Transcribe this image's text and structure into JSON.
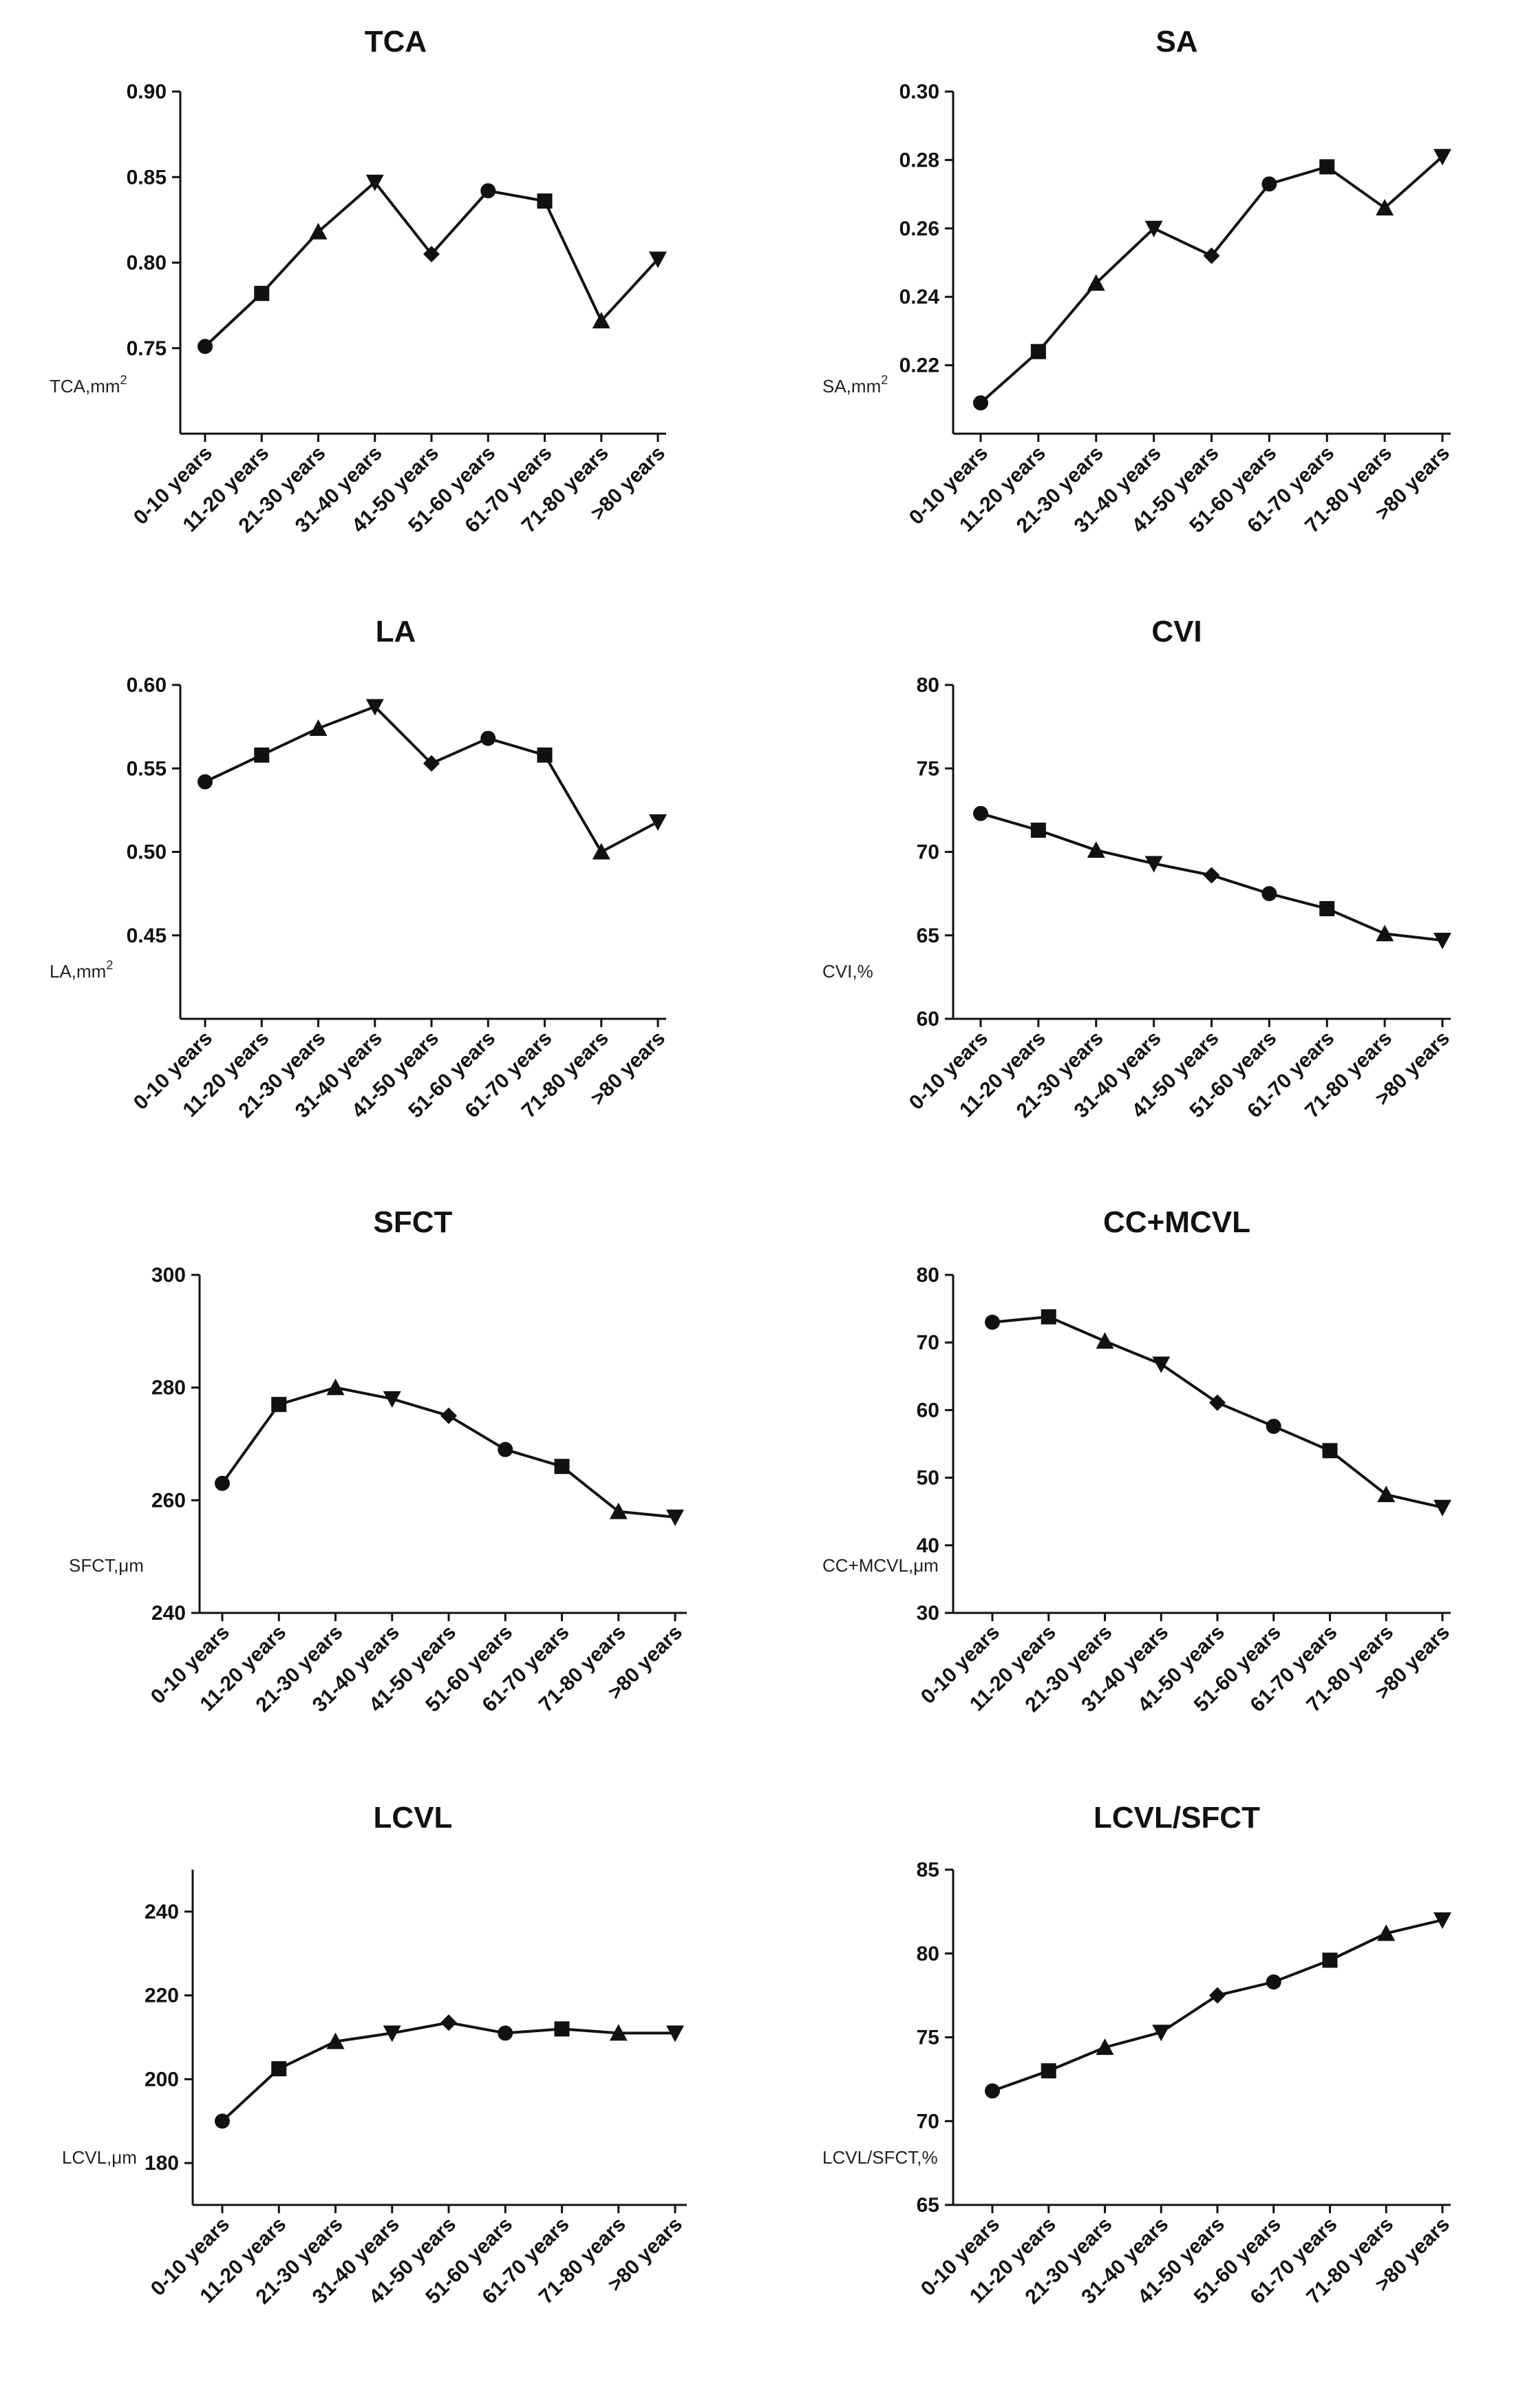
{
  "chart_data": [
    {
      "type": "line",
      "title": "TCA",
      "ylabel": "TCA,mm",
      "ylabel_sup": "2",
      "categories": [
        "0-10 years",
        "11-20 years",
        "21-30 years",
        "31-40 years",
        "41-50 years",
        "51-60 years",
        "61-70 years",
        "71-80 years",
        ">80 years"
      ],
      "values": [
        0.751,
        0.782,
        0.818,
        0.847,
        0.805,
        0.842,
        0.836,
        0.766,
        0.802
      ],
      "ylim": [
        0.7,
        0.9
      ],
      "yticks": [
        "0.75",
        "0.80",
        "0.85",
        "0.90"
      ],
      "ytick_values": [
        0.75,
        0.8,
        0.85,
        0.9
      ],
      "markers": [
        "circle",
        "square",
        "triangle-up",
        "triangle-down",
        "diamond",
        "circle",
        "square",
        "triangle-up",
        "triangle-down"
      ]
    },
    {
      "type": "line",
      "title": "SA",
      "ylabel": "SA,mm",
      "ylabel_sup": "2",
      "categories": [
        "0-10 years",
        "11-20 years",
        "21-30 years",
        "31-40 years",
        "41-50 years",
        "51-60 years",
        "61-70 years",
        "71-80 years",
        ">80 years"
      ],
      "values": [
        0.209,
        0.224,
        0.244,
        0.26,
        0.252,
        0.273,
        0.278,
        0.266,
        0.281
      ],
      "ylim": [
        0.2,
        0.3
      ],
      "yticks": [
        "0.22",
        "0.24",
        "0.26",
        "0.28",
        "0.30"
      ],
      "ytick_values": [
        0.22,
        0.24,
        0.26,
        0.28,
        0.3
      ],
      "markers": [
        "circle",
        "square",
        "triangle-up",
        "triangle-down",
        "diamond",
        "circle",
        "square",
        "triangle-up",
        "triangle-down"
      ]
    },
    {
      "type": "line",
      "title": "LA",
      "ylabel": "LA,mm",
      "ylabel_sup": "2",
      "categories": [
        "0-10 years",
        "11-20 years",
        "21-30 years",
        "31-40 years",
        "41-50 years",
        "51-60 years",
        "61-70 years",
        "71-80 years",
        ">80 years"
      ],
      "values": [
        0.542,
        0.558,
        0.574,
        0.587,
        0.553,
        0.568,
        0.558,
        0.5,
        0.518
      ],
      "ylim": [
        0.4,
        0.6
      ],
      "yticks": [
        "0.45",
        "0.50",
        "0.55",
        "0.60"
      ],
      "ytick_values": [
        0.45,
        0.5,
        0.55,
        0.6
      ],
      "markers": [
        "circle",
        "square",
        "triangle-up",
        "triangle-down",
        "diamond",
        "circle",
        "square",
        "triangle-up",
        "triangle-down"
      ]
    },
    {
      "type": "line",
      "title": "CVI",
      "ylabel": "CVI,%",
      "ylabel_sup": "",
      "categories": [
        "0-10 years",
        "11-20 years",
        "21-30 years",
        "31-40 years",
        "41-50 years",
        "51-60 years",
        "61-70 years",
        "71-80 years",
        ">80 years"
      ],
      "values": [
        72.3,
        71.3,
        70.1,
        69.3,
        68.6,
        67.5,
        66.6,
        65.1,
        64.7
      ],
      "ylim": [
        60,
        80
      ],
      "yticks": [
        "60",
        "65",
        "70",
        "75",
        "80"
      ],
      "ytick_values": [
        60,
        65,
        70,
        75,
        80
      ],
      "markers": [
        "circle",
        "square",
        "triangle-up",
        "triangle-down",
        "diamond",
        "circle",
        "square",
        "triangle-up",
        "triangle-down"
      ]
    },
    {
      "type": "line",
      "title": "SFCT",
      "ylabel": "SFCT,μm",
      "ylabel_sup": "",
      "categories": [
        "0-10 years",
        "11-20 years",
        "21-30 years",
        "31-40 years",
        "41-50 years",
        "51-60 years",
        "61-70 years",
        "71-80 years",
        ">80 years"
      ],
      "values": [
        263,
        277,
        280,
        278,
        275,
        269,
        266,
        258,
        257
      ],
      "ylim": [
        240,
        300
      ],
      "yticks": [
        "240",
        "260",
        "280",
        "300"
      ],
      "ytick_values": [
        240,
        260,
        280,
        300
      ],
      "markers": [
        "circle",
        "square",
        "triangle-up",
        "triangle-down",
        "diamond",
        "circle",
        "square",
        "triangle-up",
        "triangle-down"
      ]
    },
    {
      "type": "line",
      "title": "CC+MCVL",
      "ylabel": "CC+MCVL,μm",
      "ylabel_sup": "",
      "categories": [
        "0-10 years",
        "11-20 years",
        "21-30 years",
        "31-40 years",
        "41-50 years",
        "51-60 years",
        "61-70 years",
        "71-80 years",
        ">80 years"
      ],
      "values": [
        73.0,
        73.8,
        70.2,
        66.8,
        61.1,
        57.6,
        54.0,
        47.5,
        45.6
      ],
      "ylim": [
        30,
        80
      ],
      "yticks": [
        "30",
        "40",
        "50",
        "60",
        "70",
        "80"
      ],
      "ytick_values": [
        30,
        40,
        50,
        60,
        70,
        80
      ],
      "markers": [
        "circle",
        "square",
        "triangle-up",
        "triangle-down",
        "diamond",
        "circle",
        "square",
        "triangle-up",
        "triangle-down"
      ]
    },
    {
      "type": "line",
      "title": "LCVL",
      "ylabel": "LCVL,μm",
      "ylabel_sup": "",
      "categories": [
        "0-10 years",
        "11-20 years",
        "21-30 years",
        "31-40 years",
        "41-50 years",
        "51-60 years",
        "61-70 years",
        "71-80 years",
        ">80 years"
      ],
      "values": [
        190,
        202.5,
        209,
        211,
        213.5,
        211,
        212,
        211,
        211
      ],
      "ylim": [
        170,
        250
      ],
      "yticks": [
        "180",
        "200",
        "220",
        "240"
      ],
      "ytick_values": [
        180,
        200,
        220,
        240
      ],
      "markers": [
        "circle",
        "square",
        "triangle-up",
        "triangle-down",
        "diamond",
        "circle",
        "square",
        "triangle-up",
        "triangle-down"
      ]
    },
    {
      "type": "line",
      "title": "LCVL/SFCT",
      "ylabel": "LCVL/SFCT,%",
      "ylabel_sup": "",
      "categories": [
        "0-10 years",
        "11-20 years",
        "21-30 years",
        "31-40 years",
        "41-50 years",
        "51-60 years",
        "61-70 years",
        "71-80 years",
        ">80 years"
      ],
      "values": [
        71.8,
        73.0,
        74.4,
        75.3,
        77.5,
        78.3,
        79.6,
        81.2,
        82.0
      ],
      "ylim": [
        65,
        85
      ],
      "yticks": [
        "65",
        "70",
        "75",
        "80",
        "85"
      ],
      "ytick_values": [
        65,
        70,
        75,
        80,
        85
      ],
      "markers": [
        "circle",
        "square",
        "triangle-up",
        "triangle-down",
        "diamond",
        "circle",
        "square",
        "triangle-up",
        "triangle-down"
      ]
    }
  ]
}
